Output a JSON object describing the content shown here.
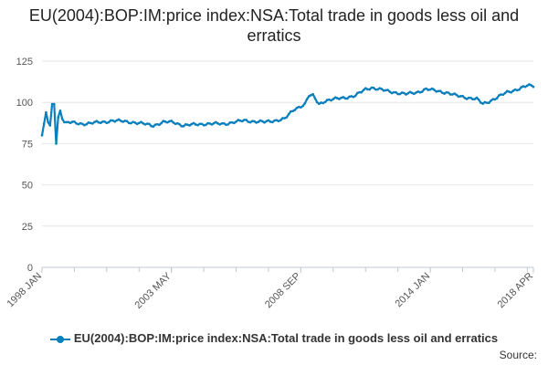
{
  "chart_data": {
    "type": "line",
    "title": "EU(2004):BOP:IM:price index:NSA:Total trade in goods less oil and erratics",
    "xlabel": "",
    "ylabel": "",
    "ylim": [
      0,
      125
    ],
    "yticks": [
      0,
      25,
      50,
      75,
      100,
      125
    ],
    "grid": true,
    "legend_position": "bottom",
    "x_start": "1998 JAN",
    "x_end": "2018 APR",
    "xticks": [
      {
        "label": "1998 JAN",
        "index": 0
      },
      {
        "label": "2003 MAY",
        "index": 64
      },
      {
        "label": "2008 SEP",
        "index": 128
      },
      {
        "label": "2014 JAN",
        "index": 192
      },
      {
        "label": "2018 APR",
        "index": 243
      }
    ],
    "series": [
      {
        "name": "EU(2004):BOP:IM:price index:NSA:Total trade in goods less oil and erratics",
        "color": "#0a7fbd",
        "anchors": [
          [
            0,
            80
          ],
          [
            1,
            87
          ],
          [
            2,
            94
          ],
          [
            3,
            88
          ],
          [
            4,
            86
          ],
          [
            5,
            99
          ],
          [
            6,
            99
          ],
          [
            7,
            75
          ],
          [
            8,
            91
          ],
          [
            9,
            95
          ],
          [
            10,
            90
          ],
          [
            11,
            88
          ],
          [
            12,
            88
          ],
          [
            20,
            87
          ],
          [
            30,
            88
          ],
          [
            35,
            89
          ],
          [
            45,
            88
          ],
          [
            50,
            87
          ],
          [
            55,
            86
          ],
          [
            60,
            88
          ],
          [
            65,
            88
          ],
          [
            70,
            86
          ],
          [
            80,
            87
          ],
          [
            90,
            87
          ],
          [
            100,
            89
          ],
          [
            110,
            88
          ],
          [
            115,
            89
          ],
          [
            120,
            90
          ],
          [
            125,
            96
          ],
          [
            130,
            99
          ],
          [
            132,
            104
          ],
          [
            134,
            104
          ],
          [
            137,
            99
          ],
          [
            140,
            101
          ],
          [
            145,
            102
          ],
          [
            150,
            103
          ],
          [
            155,
            104
          ],
          [
            160,
            108
          ],
          [
            163,
            109
          ],
          [
            170,
            107
          ],
          [
            175,
            106
          ],
          [
            180,
            105
          ],
          [
            185,
            106
          ],
          [
            190,
            108
          ],
          [
            195,
            107
          ],
          [
            200,
            106
          ],
          [
            205,
            104
          ],
          [
            210,
            103
          ],
          [
            215,
            102
          ],
          [
            218,
            99
          ],
          [
            220,
            100
          ],
          [
            225,
            103
          ],
          [
            230,
            106
          ],
          [
            235,
            108
          ],
          [
            240,
            110
          ],
          [
            243,
            110
          ]
        ]
      }
    ]
  },
  "legend": {
    "label": "EU(2004):BOP:IM:price index:NSA:Total trade in goods less oil and erratics"
  },
  "source": {
    "label": "Source:"
  },
  "colors": {
    "series": "#0a7fbd",
    "grid": "#e6e6e6",
    "axis": "#c0c8d4"
  }
}
